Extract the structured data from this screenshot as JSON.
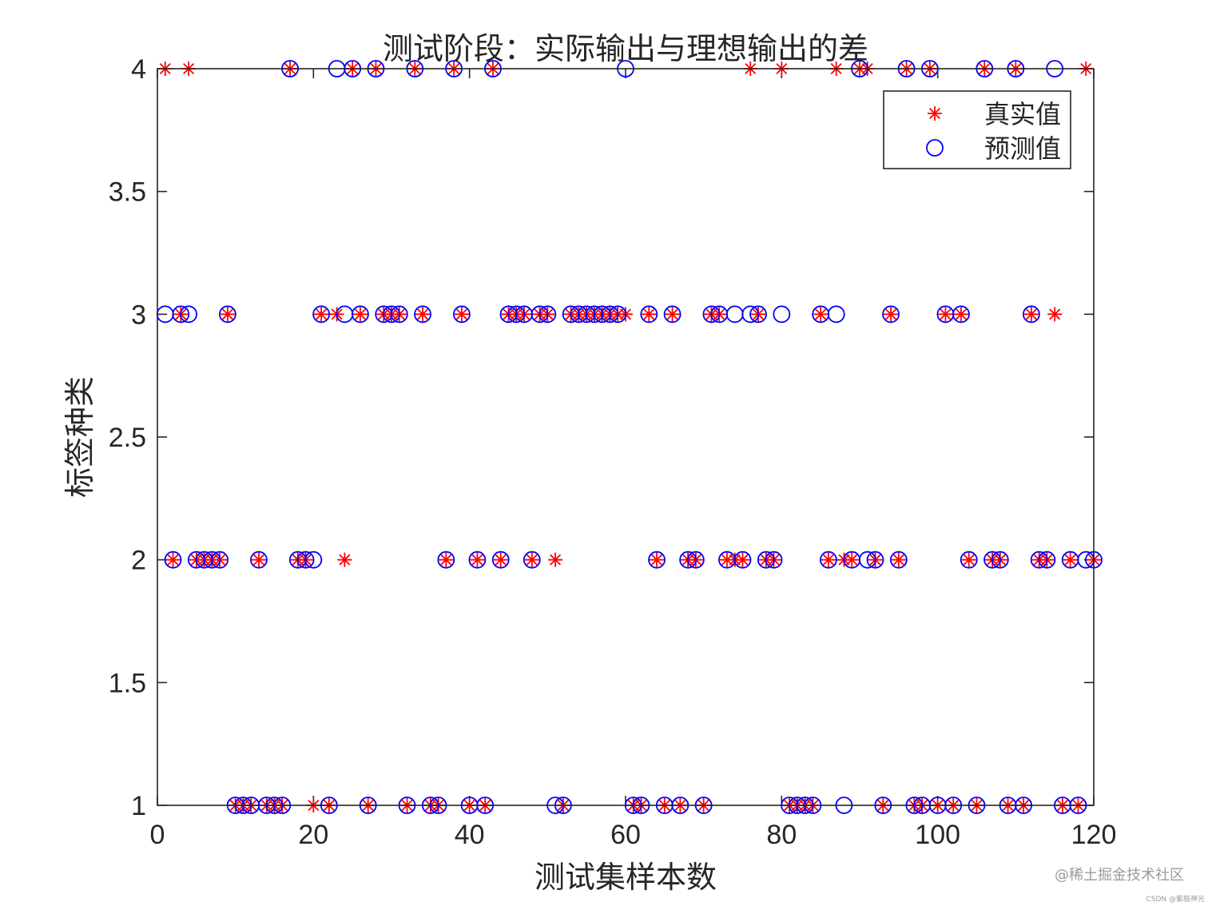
{
  "chart_data": {
    "type": "scatter",
    "title": "测试阶段：实际输出与理想输出的差",
    "xlabel": "测试集样本数",
    "ylabel": "标签种类",
    "xlim": [
      0,
      120
    ],
    "ylim": [
      1,
      4
    ],
    "xticks": [
      "0",
      "20",
      "40",
      "60",
      "80",
      "100",
      "120"
    ],
    "yticks": [
      "1",
      "1.5",
      "2",
      "2.5",
      "3",
      "3.5",
      "4"
    ],
    "grid": false,
    "legend_position": "top-right",
    "series": [
      {
        "name": "真实值",
        "marker": "asterisk",
        "color": "#ff0000",
        "x": [
          1,
          2,
          3,
          4,
          5,
          6,
          7,
          8,
          9,
          10,
          11,
          12,
          13,
          14,
          15,
          16,
          17,
          18,
          19,
          20,
          21,
          22,
          23,
          24,
          25,
          26,
          27,
          28,
          29,
          30,
          31,
          32,
          33,
          34,
          35,
          36,
          37,
          38,
          39,
          40,
          41,
          42,
          43,
          44,
          45,
          46,
          47,
          48,
          49,
          50,
          51,
          52,
          53,
          54,
          55,
          56,
          57,
          58,
          59,
          60,
          61,
          62,
          63,
          64,
          65,
          66,
          67,
          68,
          69,
          70,
          71,
          72,
          73,
          74,
          75,
          76,
          77,
          78,
          79,
          80,
          81,
          82,
          83,
          84,
          85,
          86,
          87,
          88,
          89,
          90,
          91,
          92,
          93,
          94,
          95,
          96,
          97,
          98,
          99,
          100,
          101,
          102,
          103,
          104,
          105,
          106,
          107,
          108,
          109,
          110,
          111,
          112,
          113,
          114,
          115,
          116,
          117,
          118,
          119,
          120
        ],
        "y": [
          4,
          2,
          3,
          4,
          2,
          2,
          2,
          2,
          3,
          1,
          1,
          1,
          2,
          1,
          1,
          1,
          4,
          2,
          2,
          1,
          3,
          1,
          3,
          2,
          4,
          3,
          1,
          4,
          3,
          3,
          3,
          1,
          4,
          3,
          1,
          1,
          2,
          4,
          3,
          1,
          2,
          1,
          4,
          2,
          3,
          3,
          3,
          2,
          3,
          3,
          2,
          1,
          3,
          3,
          3,
          3,
          3,
          3,
          3,
          3,
          1,
          1,
          3,
          2,
          1,
          3,
          1,
          2,
          2,
          1,
          3,
          3,
          2,
          2,
          2,
          4,
          3,
          2,
          2,
          4,
          1,
          1,
          1,
          1,
          3,
          2,
          4,
          2,
          2,
          4,
          4,
          2,
          1,
          3,
          2,
          4,
          1,
          1,
          4,
          1,
          3,
          1,
          3,
          2,
          1,
          4,
          2,
          2,
          1,
          4,
          1,
          3,
          2,
          2,
          3,
          1,
          2,
          1,
          4,
          2
        ]
      },
      {
        "name": "预测值",
        "marker": "circle",
        "color": "#0000ff",
        "x": [
          1,
          2,
          3,
          4,
          5,
          6,
          7,
          8,
          9,
          10,
          11,
          12,
          13,
          14,
          15,
          16,
          17,
          18,
          19,
          20,
          21,
          22,
          23,
          24,
          25,
          26,
          27,
          28,
          29,
          30,
          31,
          32,
          33,
          34,
          35,
          36,
          37,
          38,
          39,
          40,
          41,
          42,
          43,
          44,
          45,
          46,
          47,
          48,
          49,
          50,
          51,
          52,
          53,
          54,
          55,
          56,
          57,
          58,
          59,
          60,
          61,
          62,
          63,
          64,
          65,
          66,
          67,
          68,
          69,
          70,
          71,
          72,
          73,
          74,
          75,
          76,
          77,
          78,
          79,
          80,
          81,
          82,
          83,
          84,
          85,
          86,
          87,
          88,
          89,
          90,
          91,
          92,
          93,
          94,
          95,
          96,
          97,
          98,
          99,
          100,
          101,
          102,
          103,
          104,
          105,
          106,
          107,
          108,
          109,
          110,
          111,
          112,
          113,
          114,
          115,
          116,
          117,
          118,
          119,
          120
        ],
        "y": [
          3,
          2,
          3,
          3,
          2,
          2,
          2,
          2,
          3,
          1,
          1,
          1,
          2,
          1,
          1,
          1,
          4,
          2,
          2,
          2,
          3,
          1,
          4,
          3,
          4,
          3,
          1,
          4,
          3,
          3,
          3,
          1,
          4,
          3,
          1,
          1,
          2,
          4,
          3,
          1,
          2,
          1,
          4,
          2,
          3,
          3,
          3,
          2,
          3,
          3,
          1,
          1,
          3,
          3,
          3,
          3,
          3,
          3,
          3,
          4,
          1,
          1,
          3,
          2,
          1,
          3,
          1,
          2,
          2,
          1,
          3,
          3,
          2,
          3,
          2,
          3,
          3,
          2,
          2,
          3,
          1,
          1,
          1,
          1,
          3,
          2,
          3,
          1,
          2,
          4,
          2,
          2,
          1,
          3,
          2,
          4,
          1,
          1,
          4,
          1,
          3,
          1,
          3,
          2,
          1,
          4,
          2,
          2,
          1,
          4,
          1,
          3,
          2,
          2,
          4,
          1,
          2,
          1,
          2,
          2
        ]
      }
    ]
  },
  "watermark": {
    "main": "@稀土掘金技术社区",
    "small": "CSDN @紫极神光"
  }
}
